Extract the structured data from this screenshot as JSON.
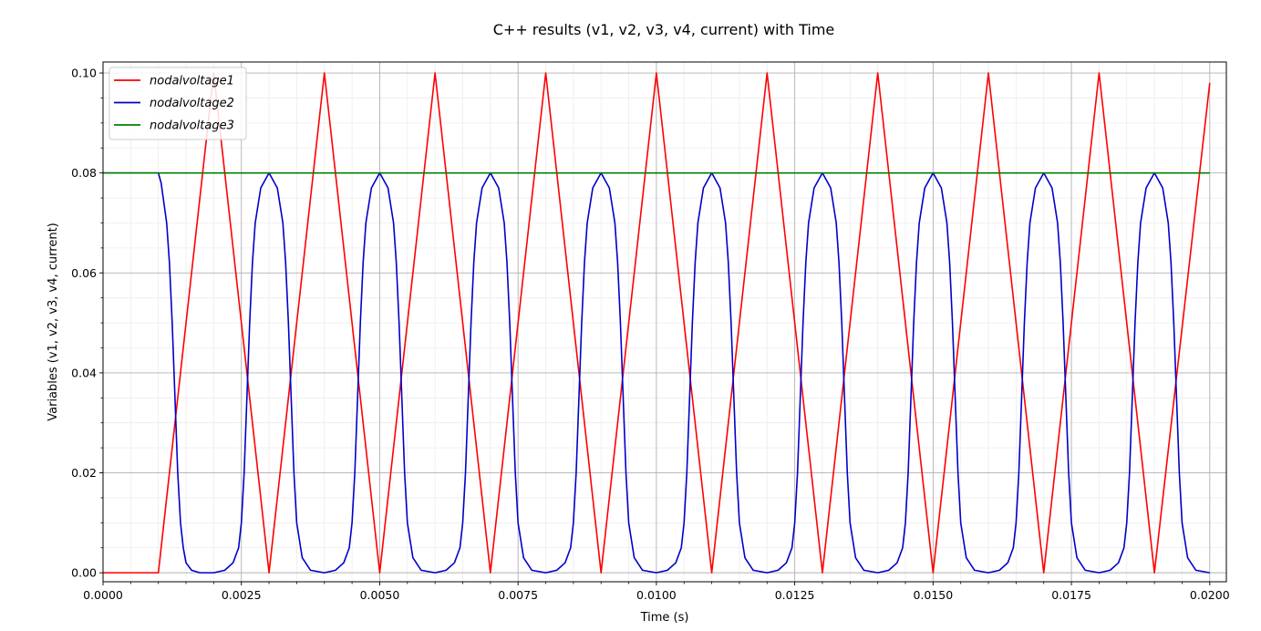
{
  "chart_data": {
    "type": "line",
    "title": "C++ results (v1, v2, v3, v4, current) with Time",
    "xlabel": "Time (s)",
    "ylabel": "Variables (v1, v2, v3, v4, current)",
    "xlim": [
      0,
      0.0203
    ],
    "ylim": [
      -0.0018,
      0.1022
    ],
    "x_ticks": [
      0,
      0.0025,
      0.005,
      0.0075,
      0.01,
      0.0125,
      0.015,
      0.0175,
      0.02
    ],
    "x_tick_labels": [
      "0.0000",
      "0.0025",
      "0.0050",
      "0.0075",
      "0.0100",
      "0.0125",
      "0.0150",
      "0.0175",
      "0.0200"
    ],
    "y_ticks": [
      0,
      0.02,
      0.04,
      0.06,
      0.08,
      0.1
    ],
    "y_tick_labels": [
      "0.00",
      "0.02",
      "0.04",
      "0.06",
      "0.08",
      "0.10"
    ],
    "grid": true,
    "legend_position": "top-left",
    "series": [
      {
        "name": "nodalvoltage1",
        "color": "#ff0000",
        "x": [
          0,
          0.001,
          0.002,
          0.003,
          0.004,
          0.005,
          0.006,
          0.007,
          0.008,
          0.009,
          0.01,
          0.011,
          0.012,
          0.013,
          0.014,
          0.015,
          0.016,
          0.017,
          0.018,
          0.019,
          0.02
        ],
        "y": [
          0,
          0,
          0.1,
          0,
          0.1,
          0,
          0.1,
          0,
          0.1,
          0,
          0.1,
          0,
          0.1,
          0,
          0.1,
          0,
          0.1,
          0,
          0.1,
          0,
          0.098
        ]
      },
      {
        "name": "nodalvoltage2",
        "color": "#0000cc",
        "x": [
          0,
          0.001,
          0.00105,
          0.00115,
          0.0012,
          0.00125,
          0.0013,
          0.00135,
          0.0014,
          0.00145,
          0.0015,
          0.0016,
          0.00175,
          0.002,
          0.0022,
          0.00235,
          0.00245,
          0.0025,
          0.00255,
          0.0026,
          0.00265,
          0.0027,
          0.00275,
          0.00285,
          0.003,
          0.00315,
          0.00325,
          0.0033,
          0.00335,
          0.0034,
          0.00345,
          0.0035,
          0.0036,
          0.00375,
          0.004,
          0.0042,
          0.00435,
          0.00445,
          0.0045,
          0.00455,
          0.0046,
          0.00465,
          0.0047,
          0.00475,
          0.00485,
          0.005,
          0.00515,
          0.00525,
          0.0053,
          0.00535,
          0.0054,
          0.00545,
          0.0055,
          0.0056,
          0.00575,
          0.006,
          0.0062,
          0.00635,
          0.00645,
          0.0065,
          0.00655,
          0.0066,
          0.00665,
          0.0067,
          0.00675,
          0.00685,
          0.007,
          0.00715,
          0.00725,
          0.0073,
          0.00735,
          0.0074,
          0.00745,
          0.0075,
          0.0076,
          0.00775,
          0.008,
          0.0082,
          0.00835,
          0.00845,
          0.0085,
          0.00855,
          0.0086,
          0.00865,
          0.0087,
          0.00875,
          0.00885,
          0.009,
          0.00915,
          0.00925,
          0.0093,
          0.00935,
          0.0094,
          0.00945,
          0.0095,
          0.0096,
          0.00975,
          0.01,
          0.0102,
          0.01035,
          0.01045,
          0.0105,
          0.01055,
          0.0106,
          0.01065,
          0.0107,
          0.01075,
          0.01085,
          0.011,
          0.01115,
          0.01125,
          0.0113,
          0.01135,
          0.0114,
          0.01145,
          0.0115,
          0.0116,
          0.01175,
          0.012,
          0.0122,
          0.01235,
          0.01245,
          0.0125,
          0.01255,
          0.0126,
          0.01265,
          0.0127,
          0.01275,
          0.01285,
          0.013,
          0.01315,
          0.01325,
          0.0133,
          0.01335,
          0.0134,
          0.01345,
          0.0135,
          0.0136,
          0.01375,
          0.014,
          0.0142,
          0.01435,
          0.01445,
          0.0145,
          0.01455,
          0.0146,
          0.01465,
          0.0147,
          0.01475,
          0.01485,
          0.015,
          0.01515,
          0.01525,
          0.0153,
          0.01535,
          0.0154,
          0.01545,
          0.0155,
          0.0156,
          0.01575,
          0.016,
          0.0162,
          0.01635,
          0.01645,
          0.0165,
          0.01655,
          0.0166,
          0.01665,
          0.0167,
          0.01675,
          0.01685,
          0.017,
          0.01715,
          0.01725,
          0.0173,
          0.01735,
          0.0174,
          0.01745,
          0.0175,
          0.0176,
          0.01775,
          0.018,
          0.0182,
          0.01835,
          0.01845,
          0.0185,
          0.01855,
          0.0186,
          0.01865,
          0.0187,
          0.01875,
          0.01885,
          0.019,
          0.01915,
          0.01925,
          0.0193,
          0.01935,
          0.0194,
          0.01945,
          0.0195,
          0.0196,
          0.01975,
          0.02
        ],
        "y": [
          0.08,
          0.08,
          0.078,
          0.07,
          0.062,
          0.05,
          0.035,
          0.02,
          0.01,
          0.005,
          0.002,
          0.0005,
          0,
          0,
          0.0005,
          0.002,
          0.005,
          0.01,
          0.02,
          0.035,
          0.05,
          0.062,
          0.07,
          0.077,
          0.08,
          0.077,
          0.07,
          0.062,
          0.05,
          0.035,
          0.02,
          0.01,
          0.003,
          0.0005,
          0,
          0.0005,
          0.002,
          0.005,
          0.01,
          0.02,
          0.035,
          0.05,
          0.062,
          0.07,
          0.077,
          0.08,
          0.077,
          0.07,
          0.062,
          0.05,
          0.035,
          0.02,
          0.01,
          0.003,
          0.0005,
          0,
          0.0005,
          0.002,
          0.005,
          0.01,
          0.02,
          0.035,
          0.05,
          0.062,
          0.07,
          0.077,
          0.08,
          0.077,
          0.07,
          0.062,
          0.05,
          0.035,
          0.02,
          0.01,
          0.003,
          0.0005,
          0,
          0.0005,
          0.002,
          0.005,
          0.01,
          0.02,
          0.035,
          0.05,
          0.062,
          0.07,
          0.077,
          0.08,
          0.077,
          0.07,
          0.062,
          0.05,
          0.035,
          0.02,
          0.01,
          0.003,
          0.0005,
          0,
          0.0005,
          0.002,
          0.005,
          0.01,
          0.02,
          0.035,
          0.05,
          0.062,
          0.07,
          0.077,
          0.08,
          0.077,
          0.07,
          0.062,
          0.05,
          0.035,
          0.02,
          0.01,
          0.003,
          0.0005,
          0,
          0.0005,
          0.002,
          0.005,
          0.01,
          0.02,
          0.035,
          0.05,
          0.062,
          0.07,
          0.077,
          0.08,
          0.077,
          0.07,
          0.062,
          0.05,
          0.035,
          0.02,
          0.01,
          0.003,
          0.0005,
          0,
          0.0005,
          0.002,
          0.005,
          0.01,
          0.02,
          0.035,
          0.05,
          0.062,
          0.07,
          0.077,
          0.08,
          0.077,
          0.07,
          0.062,
          0.05,
          0.035,
          0.02,
          0.01,
          0.003,
          0.0005,
          0,
          0.0005,
          0.002,
          0.005,
          0.01,
          0.02,
          0.035,
          0.05,
          0.062,
          0.07,
          0.077,
          0.08,
          0.077,
          0.07,
          0.062,
          0.05,
          0.035,
          0.02,
          0.01,
          0.003,
          0.0005,
          0,
          0.0005,
          0.002,
          0.005,
          0.01,
          0.02,
          0.035,
          0.05,
          0.062,
          0.07,
          0.077,
          0.08,
          0.077,
          0.07,
          0.062,
          0.05,
          0.035,
          0.02,
          0.01,
          0.003,
          0.0005,
          0
        ]
      },
      {
        "name": "nodalvoltage3",
        "color": "#008000",
        "x": [
          0,
          0.02
        ],
        "y": [
          0.08,
          0.08
        ]
      }
    ]
  }
}
